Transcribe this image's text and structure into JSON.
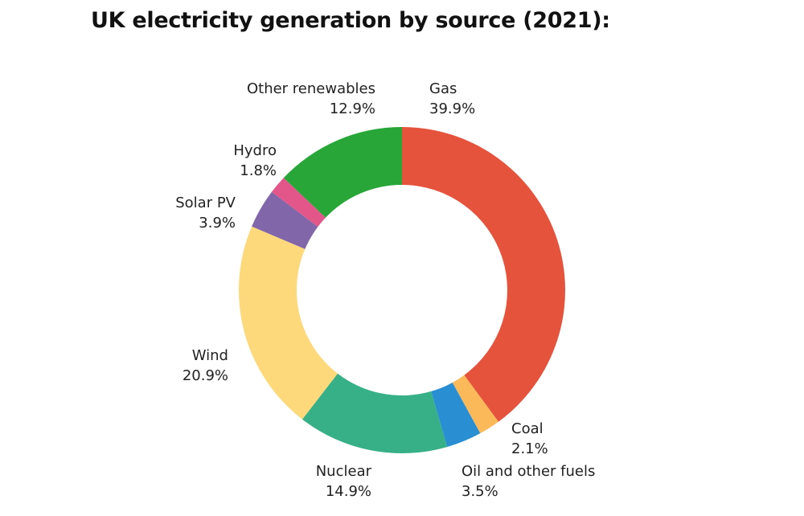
{
  "chart_data": {
    "type": "pie",
    "subtype": "donut",
    "title": "UK electricity generation by source (2021):",
    "unit": "%",
    "slices": [
      {
        "label": "Gas",
        "value": 39.9,
        "display": "39.9%",
        "color": "#e5533d"
      },
      {
        "label": "Coal",
        "value": 2.1,
        "display": "2.1%",
        "color": "#fbb95a"
      },
      {
        "label": "Oil and other fuels",
        "value": 3.5,
        "display": "3.5%",
        "color": "#2a8fd2"
      },
      {
        "label": "Nuclear",
        "value": 14.9,
        "display": "14.9%",
        "color": "#37b088"
      },
      {
        "label": "Wind",
        "value": 20.9,
        "display": "20.9%",
        "color": "#fed97c"
      },
      {
        "label": "Solar PV",
        "value": 3.9,
        "display": "3.9%",
        "color": "#8166aa"
      },
      {
        "label": "Hydro",
        "value": 1.8,
        "display": "1.8%",
        "color": "#e2568a"
      },
      {
        "label": "Other renewables",
        "value": 12.9,
        "display": "12.9%",
        "color": "#28a738"
      }
    ],
    "start_angle": "top",
    "direction": "clockwise"
  }
}
